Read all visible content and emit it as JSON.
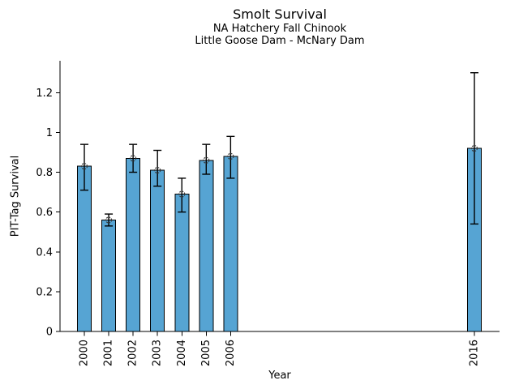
{
  "chart_data": {
    "type": "bar",
    "title": "Smolt Survival",
    "subtitle1": "NA Hatchery Fall Chinook",
    "subtitle2": "Little Goose Dam - McNary Dam",
    "xlabel": "Year",
    "ylabel": "PIT-Tag Survival",
    "categories": [
      "2000",
      "2001",
      "2002",
      "2003",
      "2004",
      "2005",
      "2006",
      "2016"
    ],
    "values": [
      0.83,
      0.56,
      0.87,
      0.81,
      0.69,
      0.86,
      0.88,
      0.92
    ],
    "error_low": [
      0.71,
      0.53,
      0.8,
      0.73,
      0.6,
      0.79,
      0.77,
      0.54
    ],
    "error_high": [
      0.94,
      0.59,
      0.94,
      0.91,
      0.77,
      0.94,
      0.98,
      1.3
    ],
    "ylim": [
      0,
      1.36
    ],
    "yticks": [
      0,
      0.2,
      0.4,
      0.6,
      0.8,
      1,
      1.2
    ],
    "ytick_labels": [
      "0",
      "0.2",
      "0.4",
      "0.6",
      "0.8",
      "1",
      "1.2"
    ],
    "bar_color": "#56a4d3",
    "bar_edge_color": "#000000",
    "error_color": "#000000",
    "marker": "open-circle-dashed",
    "marker_color": "#3a3a3a",
    "grid": false,
    "legend": null
  }
}
